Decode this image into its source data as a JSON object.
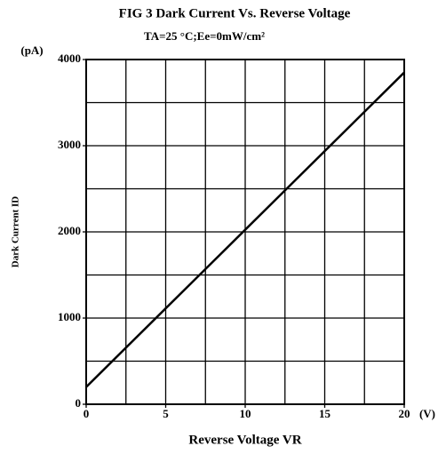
{
  "chart_data": {
    "type": "line",
    "title": "FIG 3 Dark Current Vs. Reverse Voltage",
    "subtitle": "TA=25 °C;Ee=0mW/cm²",
    "x_label": "Reverse Voltage VR",
    "y_label": "Dark Current ID",
    "x_unit": "(V)",
    "y_unit": "(pA)",
    "x": [
      0,
      20
    ],
    "series": [
      {
        "name": "ID",
        "color": "#000000",
        "values": [
          200,
          3850
        ]
      }
    ],
    "xlim": [
      0,
      20
    ],
    "xticks": [
      0,
      5,
      10,
      15,
      20
    ],
    "ylim": [
      0,
      4000
    ],
    "yticks": [
      0,
      1000,
      2000,
      3000,
      4000
    ],
    "xgrid": [
      2.5,
      5,
      7.5,
      10,
      12.5,
      15,
      17.5
    ],
    "ygrid": [
      500,
      1000,
      1500,
      2000,
      2500,
      3000,
      3500
    ],
    "grid": true
  }
}
